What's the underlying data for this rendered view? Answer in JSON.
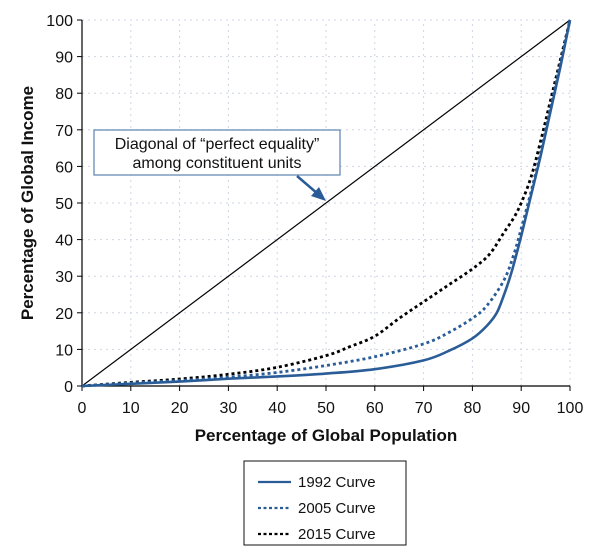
{
  "chart_data": {
    "type": "line",
    "title": "",
    "xlabel": "Percentage of Global Population",
    "ylabel": "Percentage of Global Income",
    "xlim": [
      0,
      100
    ],
    "ylim": [
      0,
      100
    ],
    "xticks": [
      0,
      10,
      20,
      30,
      40,
      50,
      60,
      70,
      80,
      90,
      100
    ],
    "yticks": [
      0,
      10,
      20,
      30,
      40,
      50,
      60,
      70,
      80,
      90,
      100
    ],
    "grid": true,
    "legend_position": "bottom-center",
    "reference_line": {
      "name": "Diagonal of perfect equality",
      "x": [
        0,
        100
      ],
      "y": [
        0,
        100
      ],
      "color": "#000000"
    },
    "annotation": {
      "lines": [
        "Diagonal of “perfect equality”",
        "among constituent units"
      ],
      "points_to": [
        49,
        51
      ]
    },
    "series": [
      {
        "name": "1992 Curve",
        "style": "solid",
        "color": "#2a5d97",
        "x": [
          0,
          10,
          20,
          30,
          40,
          50,
          60,
          70,
          75,
          80,
          83,
          85,
          86.5,
          88,
          90,
          92,
          94,
          96,
          98,
          100
        ],
        "y": [
          0,
          0.6,
          1.2,
          2.0,
          2.6,
          3.4,
          4.6,
          7.0,
          9.5,
          13,
          16.5,
          20,
          25,
          31,
          41,
          52,
          63,
          75,
          87,
          100
        ]
      },
      {
        "name": "2005 Curve",
        "style": "dashed",
        "color": "#2a5d97",
        "x": [
          0,
          10,
          20,
          30,
          40,
          50,
          60,
          70,
          75,
          80,
          83,
          86.5,
          88.5,
          90,
          92,
          94,
          96,
          98,
          100
        ],
        "y": [
          0,
          0.8,
          1.5,
          2.4,
          3.7,
          5.6,
          8.0,
          11.5,
          14.5,
          18.5,
          22,
          29,
          36,
          43,
          53,
          64,
          76,
          88,
          100
        ]
      },
      {
        "name": "2015 Curve",
        "style": "dashed",
        "color": "#000000",
        "x": [
          0,
          10,
          20,
          30,
          40,
          50,
          55,
          60,
          65,
          70,
          75,
          80,
          83.5,
          86.5,
          88.5,
          90,
          92,
          94,
          96,
          98,
          100
        ],
        "y": [
          0,
          1.0,
          1.9,
          3.2,
          5.1,
          8.3,
          10.8,
          13.6,
          18.5,
          23,
          27.5,
          32,
          36,
          42,
          46,
          50,
          57,
          67,
          78,
          89,
          100
        ]
      }
    ]
  }
}
